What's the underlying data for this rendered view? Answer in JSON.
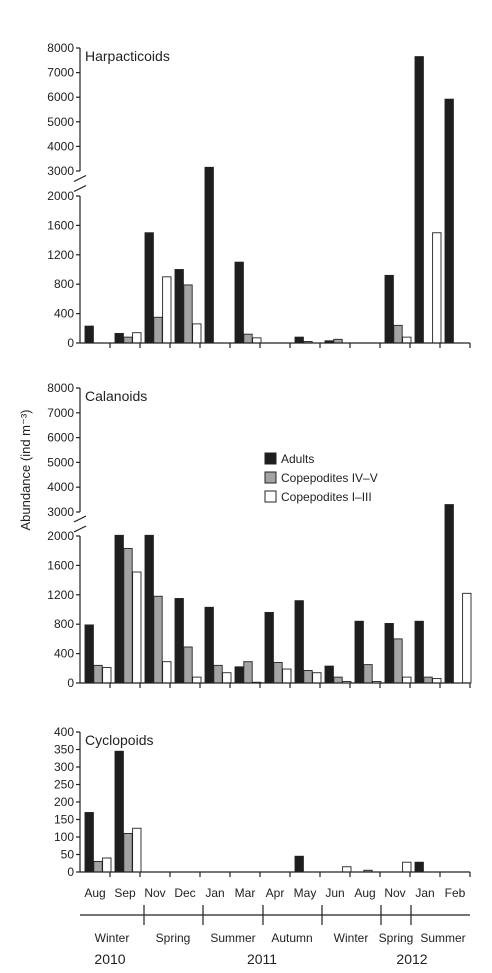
{
  "ylabel": "Abundance (ind m⁻³)",
  "legend": [
    {
      "label": "Adults",
      "color": "#1e1e1e"
    },
    {
      "label": "Copepodites IV–V",
      "color": "#a3a3a3"
    },
    {
      "label": "Copepodites I–III",
      "color": "#ffffff"
    }
  ],
  "months": [
    "Aug",
    "Sep",
    "Nov",
    "Dec",
    "Jan",
    "Mar",
    "Apr",
    "May",
    "Jun",
    "Aug",
    "Nov",
    "Jan",
    "Feb"
  ],
  "seasons": [
    {
      "label": "Winter"
    },
    {
      "label": "Spring"
    },
    {
      "label": "Summer"
    },
    {
      "label": "Autumn"
    },
    {
      "label": "Winter"
    },
    {
      "label": "Spring"
    },
    {
      "label": "Summer"
    }
  ],
  "years": [
    {
      "label": "2010"
    },
    {
      "label": "2011"
    },
    {
      "label": "2012"
    }
  ],
  "chart_data": [
    {
      "type": "bar",
      "title": "Harpacticoids",
      "categories": [
        "Aug",
        "Sep",
        "Nov",
        "Dec",
        "Jan",
        "Mar",
        "Apr",
        "May",
        "Jun",
        "Aug",
        "Nov",
        "Jan",
        "Feb"
      ],
      "axis_break": {
        "lower": [
          0,
          2000
        ],
        "upper": [
          3000,
          8000
        ]
      },
      "lower_ticks": [
        0,
        400,
        800,
        1200,
        1600,
        2000
      ],
      "upper_ticks": [
        3000,
        4000,
        5000,
        6000,
        7000,
        8000
      ],
      "series": [
        {
          "name": "Adults",
          "values": [
            230,
            130,
            1500,
            1000,
            3150,
            1100,
            0,
            80,
            30,
            0,
            920,
            7650,
            5920
          ]
        },
        {
          "name": "Copepodites IV–V",
          "values": [
            0,
            80,
            350,
            790,
            0,
            120,
            0,
            20,
            50,
            0,
            240,
            0,
            0
          ]
        },
        {
          "name": "Copepodites I–III",
          "values": [
            0,
            140,
            900,
            260,
            0,
            70,
            0,
            0,
            0,
            0,
            80,
            1500,
            0
          ]
        }
      ]
    },
    {
      "type": "bar",
      "title": "Calanoids",
      "categories": [
        "Aug",
        "Sep",
        "Nov",
        "Dec",
        "Jan",
        "Mar",
        "Apr",
        "May",
        "Jun",
        "Aug",
        "Nov",
        "Jan",
        "Feb"
      ],
      "axis_break": {
        "lower": [
          0,
          2000
        ],
        "upper": [
          3000,
          8000
        ]
      },
      "lower_ticks": [
        0,
        400,
        800,
        1200,
        1600,
        2000
      ],
      "upper_ticks": [
        3000,
        4000,
        5000,
        6000,
        7000,
        8000
      ],
      "series": [
        {
          "name": "Adults",
          "values": [
            790,
            2060,
            2060,
            1150,
            1030,
            220,
            960,
            1120,
            230,
            840,
            810,
            840,
            3300
          ]
        },
        {
          "name": "Copepodites IV–V",
          "values": [
            240,
            1830,
            1180,
            490,
            240,
            290,
            280,
            170,
            80,
            250,
            600,
            80,
            0
          ]
        },
        {
          "name": "Copepodites I–III",
          "values": [
            210,
            1510,
            290,
            80,
            140,
            10,
            190,
            140,
            20,
            20,
            80,
            60,
            1220
          ]
        }
      ]
    },
    {
      "type": "bar",
      "title": "Cyclopoids",
      "categories": [
        "Aug",
        "Sep",
        "Nov",
        "Dec",
        "Jan",
        "Mar",
        "Apr",
        "May",
        "Jun",
        "Aug",
        "Nov",
        "Jan",
        "Feb"
      ],
      "ylim": [
        0,
        400
      ],
      "ticks": [
        0,
        50,
        100,
        150,
        200,
        250,
        300,
        350,
        400
      ],
      "series": [
        {
          "name": "Adults",
          "values": [
            170,
            345,
            0,
            0,
            0,
            0,
            0,
            45,
            0,
            0,
            0,
            28,
            0
          ]
        },
        {
          "name": "Copepodites IV–V",
          "values": [
            30,
            110,
            0,
            0,
            0,
            0,
            0,
            0,
            0,
            5,
            0,
            0,
            0
          ]
        },
        {
          "name": "Copepodites I–III",
          "values": [
            40,
            125,
            0,
            0,
            0,
            0,
            0,
            0,
            15,
            0,
            28,
            0,
            0
          ]
        }
      ]
    }
  ]
}
